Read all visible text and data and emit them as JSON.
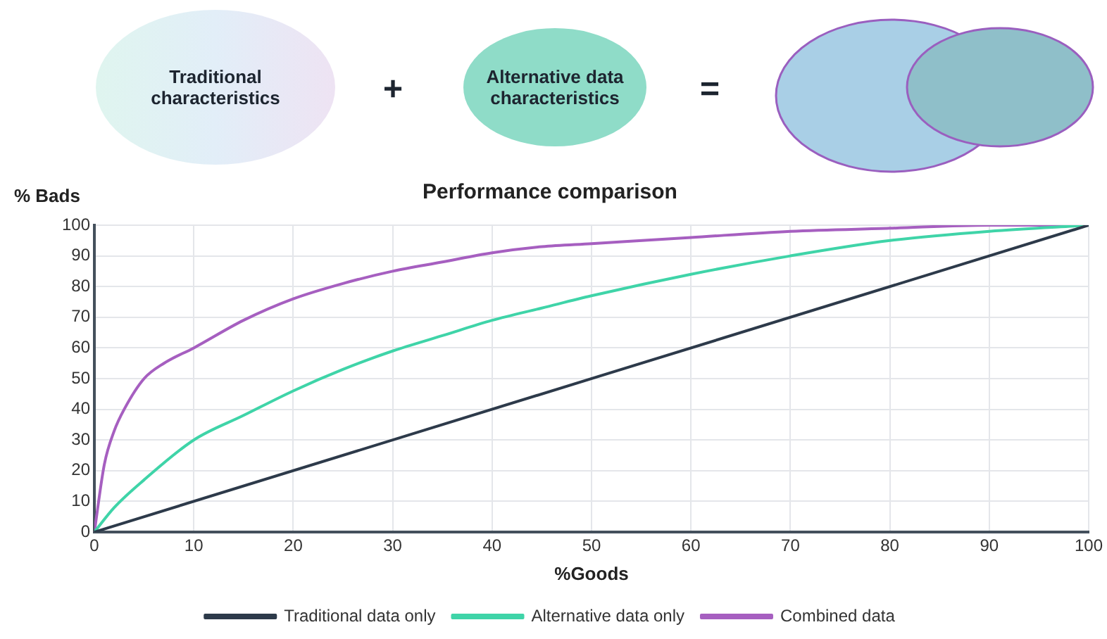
{
  "chart_data": {
    "type": "line",
    "title": "Performance comparison",
    "xlabel": "%Goods",
    "ylabel": "% Bads",
    "annotations": [
      "Traditional characteristics",
      "+",
      "Alternative data characteristics",
      "="
    ],
    "x": [
      0,
      1,
      2,
      3,
      5,
      7,
      10,
      15,
      20,
      25,
      30,
      35,
      40,
      45,
      50,
      60,
      70,
      80,
      90,
      100
    ],
    "series": [
      {
        "name": "Traditional data only",
        "color": "#2d3a4a",
        "x": [
          0,
          100
        ],
        "values": [
          0,
          100
        ]
      },
      {
        "name": "Alternative data only",
        "color": "#3fd4a8",
        "x": [
          0,
          2,
          5,
          10,
          15,
          20,
          25,
          30,
          35,
          40,
          45,
          50,
          60,
          70,
          80,
          90,
          100
        ],
        "values": [
          0,
          8,
          17,
          30,
          38,
          46,
          53,
          59,
          64,
          69,
          73,
          77,
          84,
          90,
          95,
          98,
          100
        ]
      },
      {
        "name": "Combined data",
        "color": "#a65fc0",
        "values": [
          0,
          22,
          33,
          40,
          50,
          55,
          60,
          69,
          76,
          81,
          85,
          88,
          91,
          93,
          94,
          96,
          98,
          99,
          100,
          100
        ]
      }
    ],
    "xlim": [
      0,
      100
    ],
    "xticks": [
      0,
      10,
      20,
      30,
      40,
      50,
      60,
      70,
      80,
      90,
      100
    ],
    "ylim": [
      0,
      100
    ],
    "yticks": [
      0,
      10,
      20,
      30,
      40,
      50,
      60,
      70,
      80,
      90,
      100
    ],
    "grid": true,
    "legend": "bottom",
    "marker": "none",
    "line_style": "solid"
  }
}
